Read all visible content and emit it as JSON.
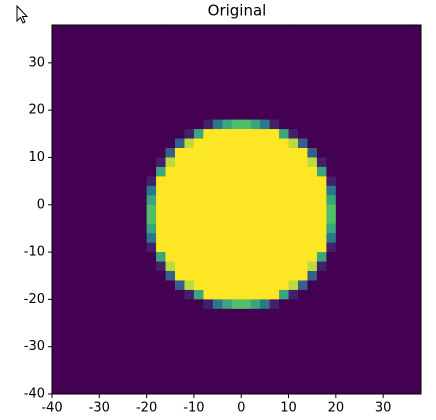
{
  "chart_data": {
    "type": "heatmap",
    "title": "Original",
    "colormap": "viridis",
    "xlim": [
      -40,
      38
    ],
    "ylim": [
      -40,
      38
    ],
    "xticks": [
      -40,
      -30,
      -20,
      -10,
      0,
      10,
      20,
      30
    ],
    "yticks": [
      -40,
      -30,
      -20,
      -10,
      0,
      10,
      20,
      30
    ],
    "z": [
      [
        0,
        0,
        0,
        0,
        0,
        0,
        0,
        0,
        0,
        0,
        0,
        0,
        0,
        0,
        0,
        0,
        0,
        0,
        0,
        0,
        0,
        0,
        0,
        0,
        0,
        0,
        0,
        0,
        0,
        0,
        0,
        0,
        0,
        0,
        0,
        0,
        0,
        0,
        0
      ],
      [
        0,
        0,
        0,
        0,
        0,
        0,
        0,
        0,
        0,
        0,
        0,
        0,
        0,
        0,
        0,
        0,
        0,
        0,
        0,
        0,
        0,
        0,
        0,
        0,
        0,
        0,
        0,
        0,
        0,
        0,
        0,
        0,
        0,
        0,
        0,
        0,
        0,
        0,
        0
      ],
      [
        0,
        0,
        0,
        0,
        0,
        0,
        0,
        0,
        0,
        0,
        0,
        0,
        0,
        0,
        0,
        0,
        0,
        0,
        0,
        0,
        0,
        0,
        0,
        0,
        0,
        0,
        0,
        0,
        0,
        0,
        0,
        0,
        0,
        0,
        0,
        0,
        0,
        0,
        0
      ],
      [
        0,
        0,
        0,
        0,
        0,
        0,
        0,
        0,
        0,
        0,
        0,
        0,
        0,
        0,
        0,
        0,
        0,
        0,
        0,
        0,
        0,
        0,
        0,
        0,
        0,
        0,
        0,
        0,
        0,
        0,
        0,
        0,
        0,
        0,
        0,
        0,
        0,
        0,
        0
      ],
      [
        0,
        0,
        0,
        0,
        0,
        0,
        0,
        0,
        0,
        0,
        0,
        0,
        0,
        0,
        0,
        0,
        0,
        0,
        0,
        0,
        0,
        0,
        0,
        0,
        0,
        0,
        0,
        0,
        0,
        0,
        0,
        0,
        0,
        0,
        0,
        0,
        0,
        0,
        0
      ],
      [
        0,
        0,
        0,
        0,
        0,
        0,
        0,
        0,
        0,
        0,
        0,
        0,
        0,
        0,
        0,
        0,
        0,
        0,
        0,
        0,
        0,
        0,
        0,
        0,
        0,
        0,
        0,
        0,
        0,
        0,
        0,
        0,
        0,
        0,
        0,
        0,
        0,
        0,
        0
      ],
      [
        0,
        0,
        0,
        0,
        0,
        0,
        0,
        0,
        0,
        0,
        0,
        0,
        0,
        0,
        0,
        0,
        0,
        0,
        0,
        0,
        0,
        0,
        0,
        0,
        0,
        0,
        0,
        0,
        0,
        0,
        0,
        0,
        0,
        0,
        0,
        0,
        0,
        0,
        0
      ],
      [
        0,
        0,
        0,
        0,
        0,
        0,
        0,
        0,
        0,
        0,
        0,
        0,
        0,
        0,
        0,
        0,
        0,
        0,
        0,
        0,
        0,
        0,
        0,
        0,
        0,
        0,
        0,
        0,
        0,
        0,
        0,
        0,
        0,
        0,
        0,
        0,
        0,
        0,
        0
      ],
      [
        0,
        0,
        0,
        0,
        0,
        0,
        0,
        0,
        0,
        0,
        0,
        0,
        0,
        0,
        0,
        0,
        0,
        0,
        0,
        0,
        0,
        0,
        0,
        0,
        0,
        0,
        0,
        0,
        0,
        0,
        0,
        0,
        0,
        0,
        0,
        0,
        0,
        0,
        0
      ],
      [
        0,
        0,
        0,
        0,
        0,
        0,
        0,
        0,
        0,
        0,
        0,
        0,
        0,
        0,
        0,
        0,
        0,
        0,
        0,
        0,
        0,
        0,
        0,
        0,
        0,
        0,
        0,
        0,
        0,
        0,
        0,
        0,
        0,
        0,
        0,
        0,
        0,
        0,
        0
      ],
      [
        0,
        0,
        0,
        0,
        0,
        0,
        0,
        0,
        0,
        0,
        0,
        0,
        0,
        0,
        0,
        0,
        0.1,
        0.4,
        0.6,
        0.7,
        0.7,
        0.6,
        0.4,
        0.1,
        0,
        0,
        0,
        0,
        0,
        0,
        0,
        0,
        0,
        0,
        0,
        0,
        0,
        0,
        0
      ],
      [
        0,
        0,
        0,
        0,
        0,
        0,
        0,
        0,
        0,
        0,
        0,
        0,
        0,
        0,
        0.1,
        0.6,
        1,
        1,
        1,
        1,
        1,
        1,
        1,
        1,
        0.6,
        0.1,
        0,
        0,
        0,
        0,
        0,
        0,
        0,
        0,
        0,
        0,
        0,
        0,
        0
      ],
      [
        0,
        0,
        0,
        0,
        0,
        0,
        0,
        0,
        0,
        0,
        0,
        0,
        0,
        0.3,
        0.9,
        1,
        1,
        1,
        1,
        1,
        1,
        1,
        1,
        1,
        1,
        0.9,
        0.3,
        0,
        0,
        0,
        0,
        0,
        0,
        0,
        0,
        0,
        0,
        0,
        0
      ],
      [
        0,
        0,
        0,
        0,
        0,
        0,
        0,
        0,
        0,
        0,
        0,
        0,
        0.3,
        1,
        1,
        1,
        1,
        1,
        1,
        1,
        1,
        1,
        1,
        1,
        1,
        1,
        1,
        0.3,
        0,
        0,
        0,
        0,
        0,
        0,
        0,
        0,
        0,
        0,
        0
      ],
      [
        0,
        0,
        0,
        0,
        0,
        0,
        0,
        0,
        0,
        0,
        0,
        0.1,
        0.9,
        1,
        1,
        1,
        1,
        1,
        1,
        1,
        1,
        1,
        1,
        1,
        1,
        1,
        1,
        0.9,
        0.1,
        0,
        0,
        0,
        0,
        0,
        0,
        0,
        0,
        0,
        0
      ],
      [
        0,
        0,
        0,
        0,
        0,
        0,
        0,
        0,
        0,
        0,
        0,
        0.6,
        1,
        1,
        1,
        1,
        1,
        1,
        1,
        1,
        1,
        1,
        1,
        1,
        1,
        1,
        1,
        1,
        0.6,
        0,
        0,
        0,
        0,
        0,
        0,
        0,
        0,
        0,
        0
      ],
      [
        0,
        0,
        0,
        0,
        0,
        0,
        0,
        0,
        0,
        0,
        0.1,
        1,
        1,
        1,
        1,
        1,
        1,
        1,
        1,
        1,
        1,
        1,
        1,
        1,
        1,
        1,
        1,
        1,
        1,
        0.1,
        0,
        0,
        0,
        0,
        0,
        0,
        0,
        0,
        0
      ],
      [
        0,
        0,
        0,
        0,
        0,
        0,
        0,
        0,
        0,
        0,
        0.4,
        1,
        1,
        1,
        1,
        1,
        1,
        1,
        1,
        1,
        1,
        1,
        1,
        1,
        1,
        1,
        1,
        1,
        1,
        0.4,
        0,
        0,
        0,
        0,
        0,
        0,
        0,
        0,
        0
      ],
      [
        0,
        0,
        0,
        0,
        0,
        0,
        0,
        0,
        0,
        0,
        0.6,
        1,
        1,
        1,
        1,
        1,
        1,
        1,
        1,
        1,
        1,
        1,
        1,
        1,
        1,
        1,
        1,
        1,
        1,
        0.6,
        0,
        0,
        0,
        0,
        0,
        0,
        0,
        0,
        0
      ],
      [
        0,
        0,
        0,
        0,
        0,
        0,
        0,
        0,
        0,
        0,
        0.7,
        1,
        1,
        1,
        1,
        1,
        1,
        1,
        1,
        1,
        1,
        1,
        1,
        1,
        1,
        1,
        1,
        1,
        1,
        0.7,
        0,
        0,
        0,
        0,
        0,
        0,
        0,
        0,
        0
      ],
      [
        0,
        0,
        0,
        0,
        0,
        0,
        0,
        0,
        0,
        0,
        0.7,
        1,
        1,
        1,
        1,
        1,
        1,
        1,
        1,
        1,
        1,
        1,
        1,
        1,
        1,
        1,
        1,
        1,
        1,
        0.7,
        0,
        0,
        0,
        0,
        0,
        0,
        0,
        0,
        0
      ],
      [
        0,
        0,
        0,
        0,
        0,
        0,
        0,
        0,
        0,
        0,
        0.6,
        1,
        1,
        1,
        1,
        1,
        1,
        1,
        1,
        1,
        1,
        1,
        1,
        1,
        1,
        1,
        1,
        1,
        1,
        0.6,
        0,
        0,
        0,
        0,
        0,
        0,
        0,
        0,
        0
      ],
      [
        0,
        0,
        0,
        0,
        0,
        0,
        0,
        0,
        0,
        0,
        0.4,
        1,
        1,
        1,
        1,
        1,
        1,
        1,
        1,
        1,
        1,
        1,
        1,
        1,
        1,
        1,
        1,
        1,
        1,
        0.4,
        0,
        0,
        0,
        0,
        0,
        0,
        0,
        0,
        0
      ],
      [
        0,
        0,
        0,
        0,
        0,
        0,
        0,
        0,
        0,
        0,
        0.1,
        1,
        1,
        1,
        1,
        1,
        1,
        1,
        1,
        1,
        1,
        1,
        1,
        1,
        1,
        1,
        1,
        1,
        1,
        0.1,
        0,
        0,
        0,
        0,
        0,
        0,
        0,
        0,
        0
      ],
      [
        0,
        0,
        0,
        0,
        0,
        0,
        0,
        0,
        0,
        0,
        0,
        0.6,
        1,
        1,
        1,
        1,
        1,
        1,
        1,
        1,
        1,
        1,
        1,
        1,
        1,
        1,
        1,
        1,
        0.6,
        0,
        0,
        0,
        0,
        0,
        0,
        0,
        0,
        0,
        0
      ],
      [
        0,
        0,
        0,
        0,
        0,
        0,
        0,
        0,
        0,
        0,
        0,
        0.1,
        0.9,
        1,
        1,
        1,
        1,
        1,
        1,
        1,
        1,
        1,
        1,
        1,
        1,
        1,
        1,
        0.9,
        0.1,
        0,
        0,
        0,
        0,
        0,
        0,
        0,
        0,
        0,
        0
      ],
      [
        0,
        0,
        0,
        0,
        0,
        0,
        0,
        0,
        0,
        0,
        0,
        0,
        0.3,
        1,
        1,
        1,
        1,
        1,
        1,
        1,
        1,
        1,
        1,
        1,
        1,
        1,
        1,
        0.3,
        0,
        0,
        0,
        0,
        0,
        0,
        0,
        0,
        0,
        0,
        0
      ],
      [
        0,
        0,
        0,
        0,
        0,
        0,
        0,
        0,
        0,
        0,
        0,
        0,
        0,
        0.3,
        0.9,
        1,
        1,
        1,
        1,
        1,
        1,
        1,
        1,
        1,
        1,
        0.9,
        0.3,
        0,
        0,
        0,
        0,
        0,
        0,
        0,
        0,
        0,
        0,
        0,
        0
      ],
      [
        0,
        0,
        0,
        0,
        0,
        0,
        0,
        0,
        0,
        0,
        0,
        0,
        0,
        0,
        0.1,
        0.6,
        1,
        1,
        1,
        1,
        1,
        1,
        1,
        1,
        0.6,
        0.1,
        0,
        0,
        0,
        0,
        0,
        0,
        0,
        0,
        0,
        0,
        0,
        0,
        0
      ],
      [
        0,
        0,
        0,
        0,
        0,
        0,
        0,
        0,
        0,
        0,
        0,
        0,
        0,
        0,
        0,
        0,
        0.1,
        0.4,
        0.6,
        0.7,
        0.7,
        0.6,
        0.4,
        0.1,
        0,
        0,
        0,
        0,
        0,
        0,
        0,
        0,
        0,
        0,
        0,
        0,
        0,
        0,
        0
      ],
      [
        0,
        0,
        0,
        0,
        0,
        0,
        0,
        0,
        0,
        0,
        0,
        0,
        0,
        0,
        0,
        0,
        0,
        0,
        0,
        0,
        0,
        0,
        0,
        0,
        0,
        0,
        0,
        0,
        0,
        0,
        0,
        0,
        0,
        0,
        0,
        0,
        0,
        0,
        0
      ],
      [
        0,
        0,
        0,
        0,
        0,
        0,
        0,
        0,
        0,
        0,
        0,
        0,
        0,
        0,
        0,
        0,
        0,
        0,
        0,
        0,
        0,
        0,
        0,
        0,
        0,
        0,
        0,
        0,
        0,
        0,
        0,
        0,
        0,
        0,
        0,
        0,
        0,
        0,
        0
      ],
      [
        0,
        0,
        0,
        0,
        0,
        0,
        0,
        0,
        0,
        0,
        0,
        0,
        0,
        0,
        0,
        0,
        0,
        0,
        0,
        0,
        0,
        0,
        0,
        0,
        0,
        0,
        0,
        0,
        0,
        0,
        0,
        0,
        0,
        0,
        0,
        0,
        0,
        0,
        0
      ],
      [
        0,
        0,
        0,
        0,
        0,
        0,
        0,
        0,
        0,
        0,
        0,
        0,
        0,
        0,
        0,
        0,
        0,
        0,
        0,
        0,
        0,
        0,
        0,
        0,
        0,
        0,
        0,
        0,
        0,
        0,
        0,
        0,
        0,
        0,
        0,
        0,
        0,
        0,
        0
      ],
      [
        0,
        0,
        0,
        0,
        0,
        0,
        0,
        0,
        0,
        0,
        0,
        0,
        0,
        0,
        0,
        0,
        0,
        0,
        0,
        0,
        0,
        0,
        0,
        0,
        0,
        0,
        0,
        0,
        0,
        0,
        0,
        0,
        0,
        0,
        0,
        0,
        0,
        0,
        0
      ],
      [
        0,
        0,
        0,
        0,
        0,
        0,
        0,
        0,
        0,
        0,
        0,
        0,
        0,
        0,
        0,
        0,
        0,
        0,
        0,
        0,
        0,
        0,
        0,
        0,
        0,
        0,
        0,
        0,
        0,
        0,
        0,
        0,
        0,
        0,
        0,
        0,
        0,
        0,
        0
      ],
      [
        0,
        0,
        0,
        0,
        0,
        0,
        0,
        0,
        0,
        0,
        0,
        0,
        0,
        0,
        0,
        0,
        0,
        0,
        0,
        0,
        0,
        0,
        0,
        0,
        0,
        0,
        0,
        0,
        0,
        0,
        0,
        0,
        0,
        0,
        0,
        0,
        0,
        0,
        0
      ],
      [
        0,
        0,
        0,
        0,
        0,
        0,
        0,
        0,
        0,
        0,
        0,
        0,
        0,
        0,
        0,
        0,
        0,
        0,
        0,
        0,
        0,
        0,
        0,
        0,
        0,
        0,
        0,
        0,
        0,
        0,
        0,
        0,
        0,
        0,
        0,
        0,
        0,
        0,
        0
      ],
      [
        0,
        0,
        0,
        0,
        0,
        0,
        0,
        0,
        0,
        0,
        0,
        0,
        0,
        0,
        0,
        0,
        0,
        0,
        0,
        0,
        0,
        0,
        0,
        0,
        0,
        0,
        0,
        0,
        0,
        0,
        0,
        0,
        0,
        0,
        0,
        0,
        0,
        0,
        0
      ]
    ]
  }
}
